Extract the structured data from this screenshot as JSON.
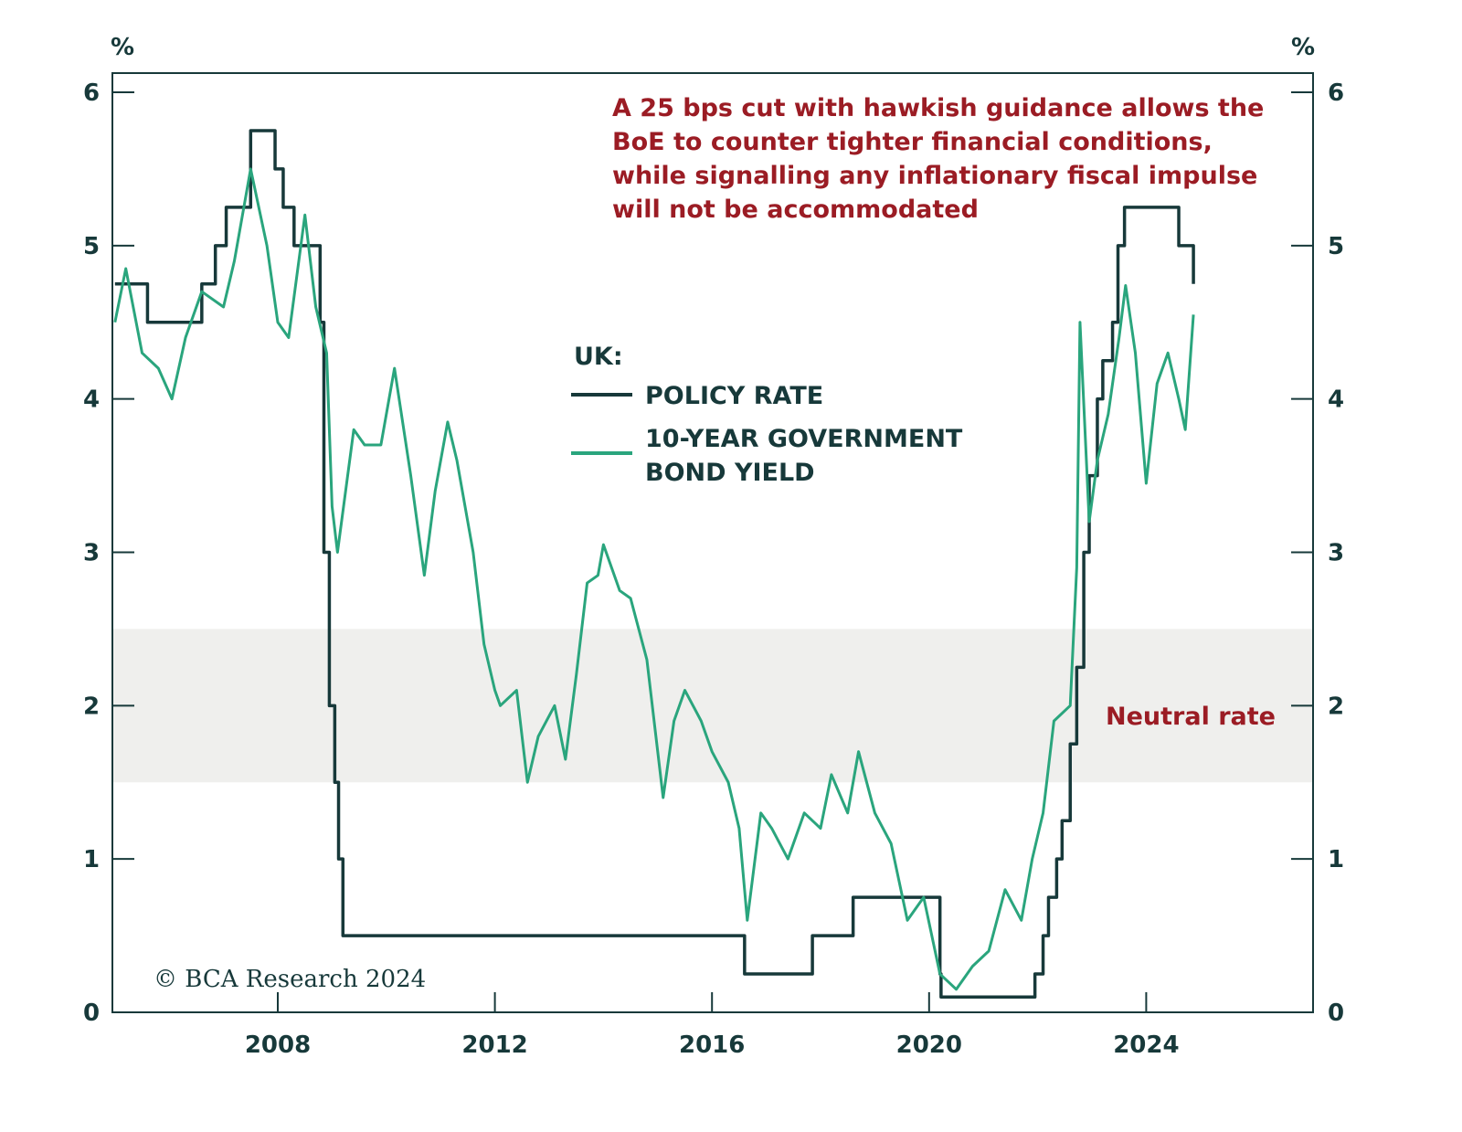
{
  "chart_data": {
    "type": "line",
    "title": "",
    "xlabel": "",
    "ylabel_left": "%",
    "ylabel_right": "%",
    "xlim": [
      2005.0,
      2027.1
    ],
    "ylim": [
      0,
      6
    ],
    "x_ticks": [
      2008,
      2012,
      2016,
      2020,
      2024
    ],
    "y_ticks": [
      0,
      1,
      2,
      3,
      4,
      5,
      6
    ],
    "grid": false,
    "colors": {
      "axis": "#17393a",
      "policy": "#17393a",
      "bond": "#2aa57d",
      "annotation": "#9b1c24",
      "band": "#efefed"
    },
    "legend": {
      "position": "center",
      "title": "UK:",
      "entries": [
        "POLICY RATE",
        "10-YEAR GOVERNMENT",
        "BOND YIELD"
      ]
    },
    "annotation": [
      "A 25 bps cut with hawkish guidance allows the",
      "BoE to counter tighter financial conditions,",
      "while signalling any inflationary fiscal impulse",
      "will not be accommodated"
    ],
    "band": {
      "label": "Neutral rate",
      "from": 1.5,
      "to": 2.5
    },
    "copyright": "© BCA Research 2024",
    "series": [
      {
        "name": "POLICY RATE",
        "step": true,
        "points": [
          [
            2005.0,
            4.75
          ],
          [
            2005.6,
            4.5
          ],
          [
            2006.6,
            4.75
          ],
          [
            2006.85,
            5.0
          ],
          [
            2007.05,
            5.25
          ],
          [
            2007.5,
            5.75
          ],
          [
            2007.95,
            5.5
          ],
          [
            2008.1,
            5.25
          ],
          [
            2008.3,
            5.0
          ],
          [
            2008.78,
            4.5
          ],
          [
            2008.85,
            3.0
          ],
          [
            2008.95,
            2.0
          ],
          [
            2009.05,
            1.5
          ],
          [
            2009.12,
            1.0
          ],
          [
            2009.2,
            0.5
          ],
          [
            2016.6,
            0.25
          ],
          [
            2017.85,
            0.5
          ],
          [
            2018.6,
            0.75
          ],
          [
            2020.2,
            0.25
          ],
          [
            2020.22,
            0.1
          ],
          [
            2021.95,
            0.25
          ],
          [
            2022.1,
            0.5
          ],
          [
            2022.2,
            0.75
          ],
          [
            2022.35,
            1.0
          ],
          [
            2022.45,
            1.25
          ],
          [
            2022.6,
            1.75
          ],
          [
            2022.72,
            2.25
          ],
          [
            2022.85,
            3.0
          ],
          [
            2022.95,
            3.5
          ],
          [
            2023.1,
            4.0
          ],
          [
            2023.2,
            4.25
          ],
          [
            2023.38,
            4.5
          ],
          [
            2023.48,
            5.0
          ],
          [
            2023.6,
            5.25
          ],
          [
            2024.6,
            5.0
          ],
          [
            2024.87,
            4.75
          ]
        ]
      },
      {
        "name": "10-YEAR GOVERNMENT BOND YIELD",
        "step": false,
        "points": [
          [
            2005.0,
            4.5
          ],
          [
            2005.2,
            4.85
          ],
          [
            2005.5,
            4.3
          ],
          [
            2005.8,
            4.2
          ],
          [
            2006.05,
            4.0
          ],
          [
            2006.3,
            4.4
          ],
          [
            2006.6,
            4.7
          ],
          [
            2007.0,
            4.6
          ],
          [
            2007.2,
            4.9
          ],
          [
            2007.5,
            5.5
          ],
          [
            2007.8,
            5.0
          ],
          [
            2008.0,
            4.5
          ],
          [
            2008.2,
            4.4
          ],
          [
            2008.5,
            5.2
          ],
          [
            2008.7,
            4.6
          ],
          [
            2008.9,
            4.3
          ],
          [
            2009.0,
            3.3
          ],
          [
            2009.1,
            3.0
          ],
          [
            2009.4,
            3.8
          ],
          [
            2009.6,
            3.7
          ],
          [
            2009.9,
            3.7
          ],
          [
            2010.05,
            4.0
          ],
          [
            2010.15,
            4.2
          ],
          [
            2010.45,
            3.5
          ],
          [
            2010.7,
            2.85
          ],
          [
            2010.9,
            3.4
          ],
          [
            2011.13,
            3.85
          ],
          [
            2011.3,
            3.6
          ],
          [
            2011.6,
            3.0
          ],
          [
            2011.8,
            2.4
          ],
          [
            2012.0,
            2.1
          ],
          [
            2012.1,
            2.0
          ],
          [
            2012.4,
            2.1
          ],
          [
            2012.6,
            1.5
          ],
          [
            2012.8,
            1.8
          ],
          [
            2013.1,
            2.0
          ],
          [
            2013.3,
            1.65
          ],
          [
            2013.5,
            2.2
          ],
          [
            2013.7,
            2.8
          ],
          [
            2013.9,
            2.85
          ],
          [
            2014.0,
            3.05
          ],
          [
            2014.3,
            2.75
          ],
          [
            2014.5,
            2.7
          ],
          [
            2014.8,
            2.3
          ],
          [
            2015.1,
            1.4
          ],
          [
            2015.3,
            1.9
          ],
          [
            2015.5,
            2.1
          ],
          [
            2015.8,
            1.9
          ],
          [
            2016.0,
            1.7
          ],
          [
            2016.3,
            1.5
          ],
          [
            2016.5,
            1.2
          ],
          [
            2016.65,
            0.6
          ],
          [
            2016.9,
            1.3
          ],
          [
            2017.1,
            1.2
          ],
          [
            2017.4,
            1.0
          ],
          [
            2017.7,
            1.3
          ],
          [
            2018.0,
            1.2
          ],
          [
            2018.2,
            1.55
          ],
          [
            2018.5,
            1.3
          ],
          [
            2018.7,
            1.7
          ],
          [
            2019.0,
            1.3
          ],
          [
            2019.3,
            1.1
          ],
          [
            2019.6,
            0.6
          ],
          [
            2019.9,
            0.75
          ],
          [
            2020.2,
            0.25
          ],
          [
            2020.5,
            0.15
          ],
          [
            2020.8,
            0.3
          ],
          [
            2021.1,
            0.4
          ],
          [
            2021.4,
            0.8
          ],
          [
            2021.7,
            0.6
          ],
          [
            2021.9,
            1.0
          ],
          [
            2022.1,
            1.3
          ],
          [
            2022.3,
            1.9
          ],
          [
            2022.6,
            2.0
          ],
          [
            2022.72,
            2.9
          ],
          [
            2022.78,
            4.5
          ],
          [
            2022.95,
            3.2
          ],
          [
            2023.1,
            3.6
          ],
          [
            2023.3,
            3.9
          ],
          [
            2023.5,
            4.4
          ],
          [
            2023.62,
            4.74
          ],
          [
            2023.8,
            4.3
          ],
          [
            2024.0,
            3.45
          ],
          [
            2024.2,
            4.1
          ],
          [
            2024.4,
            4.3
          ],
          [
            2024.6,
            4.0
          ],
          [
            2024.72,
            3.8
          ],
          [
            2024.87,
            4.55
          ]
        ]
      }
    ]
  }
}
